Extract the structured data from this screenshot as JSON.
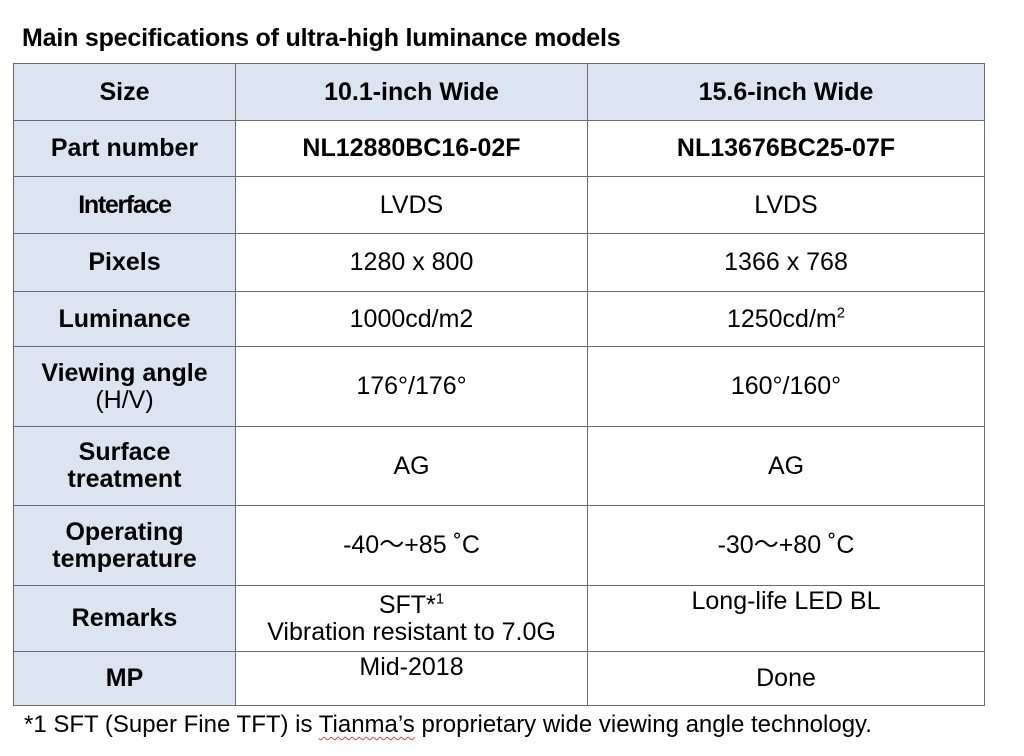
{
  "title": "Main specifications of ultra-high luminance models",
  "header": {
    "label": "Size",
    "col1": "10.1-inch Wide",
    "col2": "15.6-inch Wide"
  },
  "rows": [
    {
      "label": "Part number",
      "col1": "NL12880BC16-02F",
      "col2": "NL13676BC25-07F"
    },
    {
      "label": "Interface",
      "col1": "LVDS",
      "col2": "LVDS"
    },
    {
      "label": "Pixels",
      "col1": "1280 x 800",
      "col2": "1366 x 768"
    },
    {
      "label": "Luminance",
      "col1": "1000cd/m2",
      "col2_base": "1250cd/m",
      "col2_sup": "2"
    },
    {
      "label_line1": "Viewing angle",
      "label_line2": "(H/V)",
      "col1": "176°/176°",
      "col2": "160°/160°"
    },
    {
      "label_line1": "Surface",
      "label_line2": "treatment",
      "col1": "AG",
      "col2": "AG"
    },
    {
      "label_line1": "Operating",
      "label_line2": "temperature",
      "col1": "-40～+85 ˚C",
      "col2": "-30～+80 ˚C"
    },
    {
      "label": "Remarks",
      "col1_line1": "SFT*",
      "col1_sup": "1",
      "col1_line2": "Vibration resistant to 7.0G",
      "col2": "Long-life LED BL"
    },
    {
      "label": "MP",
      "col1": "Mid-2018",
      "col2": "Done"
    }
  ],
  "footnote": {
    "before": "*1 SFT (Super Fine TFT) is ",
    "flagged_word": "Tianma’s",
    "after": " proprietary wide viewing angle technology."
  }
}
